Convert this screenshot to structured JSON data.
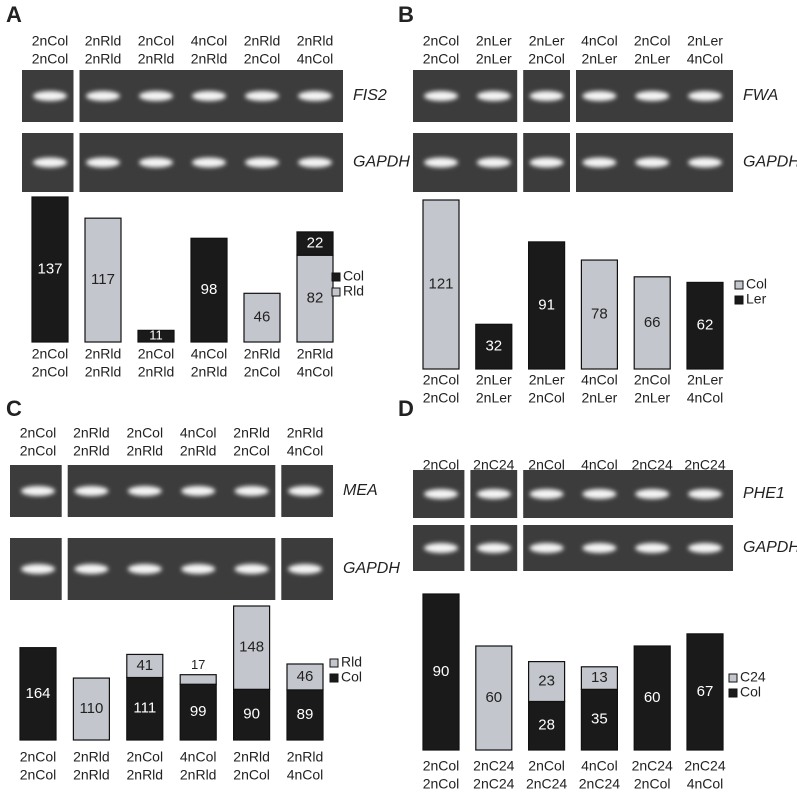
{
  "chart_data": [
    {
      "type": "bar",
      "panel_label": "A",
      "gel_labels": [
        "FIS2",
        "GAPDH"
      ],
      "categories": [
        [
          "2nCol",
          "2nCol"
        ],
        [
          "2nRld",
          "2nRld"
        ],
        [
          "2nCol",
          "2nRld"
        ],
        [
          "4nCol",
          "2nRld"
        ],
        [
          "2nRld",
          "2nCol"
        ],
        [
          "2nRld",
          "4nCol"
        ]
      ],
      "series": [
        {
          "name": "Col",
          "color": "#1a1a1a",
          "values": [
            137,
            null,
            11,
            98,
            null,
            22
          ]
        },
        {
          "name": "Rld",
          "color": "#c3c6cc",
          "values": [
            null,
            117,
            null,
            null,
            46,
            82
          ]
        }
      ]
    },
    {
      "type": "bar",
      "panel_label": "B",
      "gel_labels": [
        "FWA",
        "GAPDH"
      ],
      "categories": [
        [
          "2nCol",
          "2nCol"
        ],
        [
          "2nLer",
          "2nLer"
        ],
        [
          "2nLer",
          "2nCol"
        ],
        [
          "4nCol",
          "2nLer"
        ],
        [
          "2nCol",
          "2nLer"
        ],
        [
          "2nLer",
          "4nCol"
        ]
      ],
      "series": [
        {
          "name": "Col",
          "color": "#c3c6cc",
          "values": [
            121,
            null,
            null,
            78,
            66,
            null
          ]
        },
        {
          "name": "Ler",
          "color": "#1a1a1a",
          "values": [
            null,
            32,
            91,
            null,
            null,
            62
          ]
        }
      ]
    },
    {
      "type": "bar",
      "panel_label": "C",
      "gel_labels": [
        "MEA",
        "GAPDH"
      ],
      "categories": [
        [
          "2nCol",
          "2nCol"
        ],
        [
          "2nRld",
          "2nRld"
        ],
        [
          "2nCol",
          "2nRld"
        ],
        [
          "4nCol",
          "2nRld"
        ],
        [
          "2nRld",
          "2nCol"
        ],
        [
          "2nRld",
          "4nCol"
        ]
      ],
      "series": [
        {
          "name": "Rld",
          "color": "#c3c6cc",
          "values": [
            null,
            110,
            41,
            17,
            148,
            46
          ]
        },
        {
          "name": "Col",
          "color": "#1a1a1a",
          "values": [
            164,
            null,
            111,
            99,
            90,
            89
          ]
        }
      ]
    },
    {
      "type": "bar",
      "panel_label": "D",
      "gel_labels": [
        "PHE1",
        "GAPDH"
      ],
      "categories": [
        [
          "2nCol",
          "2nCol"
        ],
        [
          "2nC24",
          "2nC24"
        ],
        [
          "2nCol",
          "2nC24"
        ],
        [
          "4nCol",
          "2nC24"
        ],
        [
          "2nC24",
          "2nCol"
        ],
        [
          "2nC24",
          "4nCol"
        ]
      ],
      "series": [
        {
          "name": "C24",
          "color": "#c3c6cc",
          "values": [
            null,
            60,
            23,
            13,
            null,
            null
          ]
        },
        {
          "name": "Col",
          "color": "#1a1a1a",
          "values": [
            90,
            null,
            28,
            35,
            60,
            67
          ]
        }
      ]
    }
  ]
}
